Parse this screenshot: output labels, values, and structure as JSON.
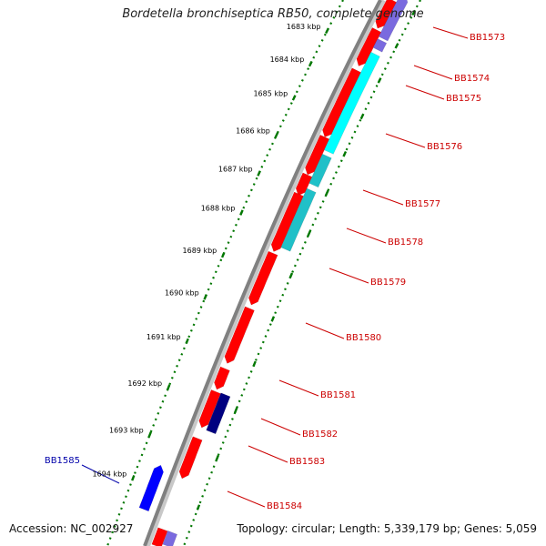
{
  "title": "Bordetella bronchiseptica RB50, complete genome",
  "accession": "Accession: NC_002927",
  "summary": "Topology: circular; Length: 5,339,179 bp; Genes: 5,059",
  "colors": {
    "backbone": "#808080",
    "forward_gene": "#ff0000",
    "reverse_gene": "#0000ff",
    "dark_gene": "#000080",
    "purple_gene": "#7a6adf",
    "cyan_gene": "#00ffff",
    "teal_gene": "#20c0c8",
    "tick_green": "#007700",
    "label_red": "#cc0000",
    "label_blue": "#0000aa"
  },
  "ruler_labels": [
    "1683 kbp",
    "1684 kbp",
    "1685 kbp",
    "1686 kbp",
    "1687 kbp",
    "1688 kbp",
    "1689 kbp",
    "1690 kbp",
    "1691 kbp",
    "1692 kbp",
    "1693 kbp",
    "1694 kbp"
  ],
  "gene_labels": [
    {
      "text": "BB1573",
      "color": "red"
    },
    {
      "text": "BB1574",
      "color": "red"
    },
    {
      "text": "BB1575",
      "color": "red"
    },
    {
      "text": "BB1576",
      "color": "red"
    },
    {
      "text": "BB1577",
      "color": "red"
    },
    {
      "text": "BB1578",
      "color": "red"
    },
    {
      "text": "BB1579",
      "color": "red"
    },
    {
      "text": "BB1580",
      "color": "red"
    },
    {
      "text": "BB1581",
      "color": "red"
    },
    {
      "text": "BB1582",
      "color": "red"
    },
    {
      "text": "BB1583",
      "color": "red"
    },
    {
      "text": "BB1584",
      "color": "red"
    },
    {
      "text": "BB1585",
      "color": "blue"
    }
  ]
}
